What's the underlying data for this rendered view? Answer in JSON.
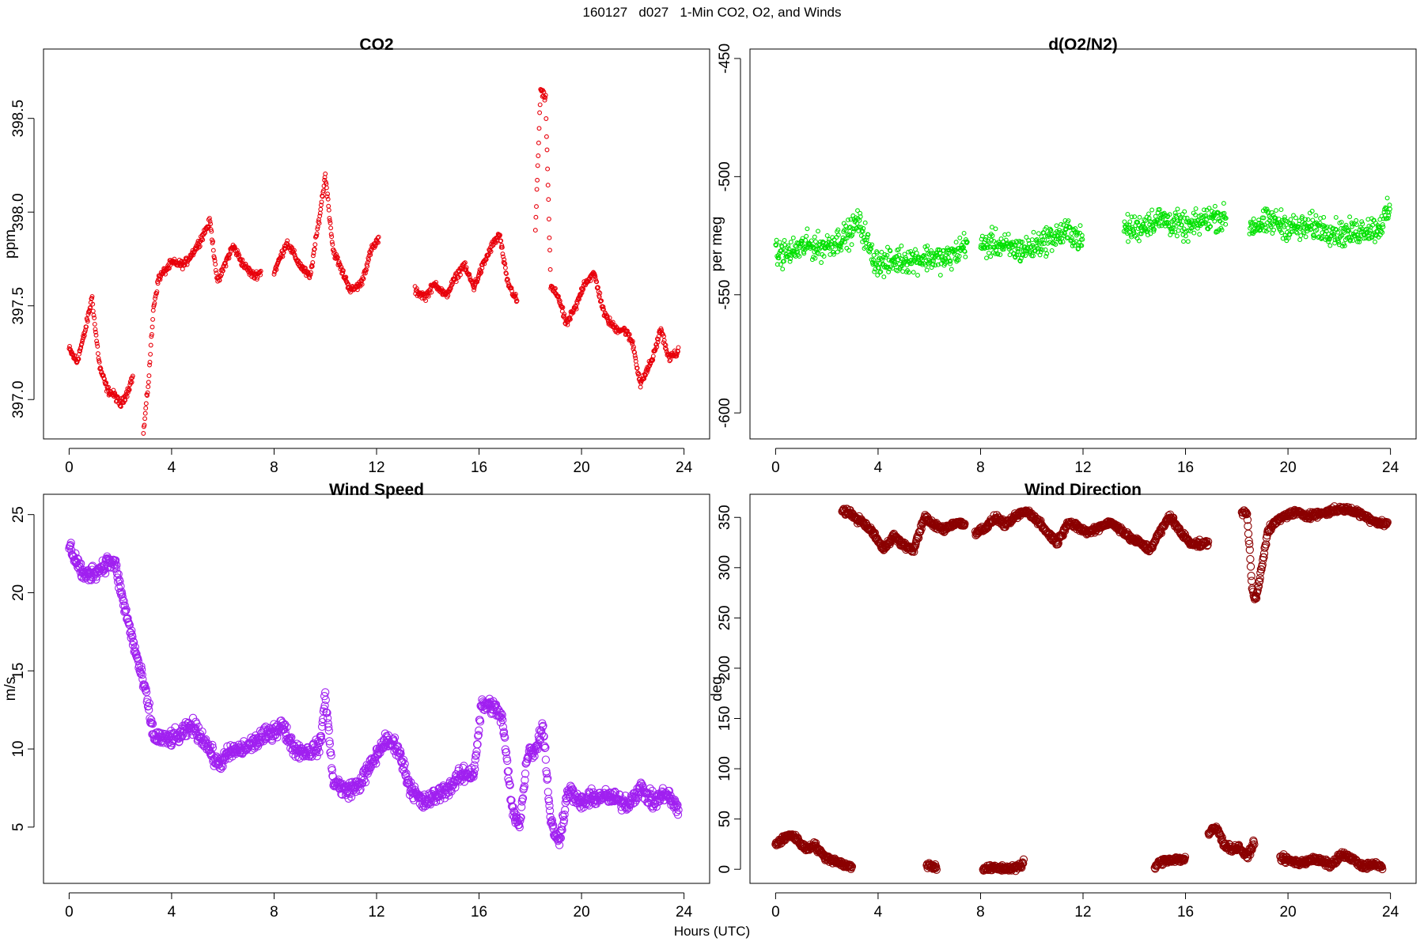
{
  "main_title": "160127   d027   1-Min CO2, O2, and Winds",
  "x_axis_label": "Hours (UTC)",
  "chart_data": [
    {
      "type": "scatter",
      "title": "CO2",
      "xlabel": "",
      "ylabel": "ppm",
      "color": "#e8000b",
      "marker_size": "small",
      "xlim": [
        -1,
        25
      ],
      "ylim": [
        396.79,
        398.87
      ],
      "xticks": [
        0,
        4,
        8,
        12,
        16,
        20,
        24
      ],
      "xtick_labels": [
        "0",
        "4",
        "8",
        "12",
        "16",
        "20",
        "24"
      ],
      "yticks": [
        397.0,
        397.5,
        398.0,
        398.5
      ],
      "ytick_labels": [
        "397.0",
        "397.5",
        "398.0",
        "398.5"
      ],
      "segments": [
        {
          "x": [
            0.0,
            0.3,
            0.6,
            0.9,
            1.0,
            1.2,
            1.5,
            1.8,
            2.0,
            2.3,
            2.5
          ],
          "y": [
            397.27,
            397.2,
            397.35,
            397.55,
            397.4,
            397.17,
            397.05,
            397.02,
            396.97,
            397.05,
            397.13
          ]
        },
        {
          "x": [
            2.9,
            3.1,
            3.3,
            3.5,
            3.7,
            4.0,
            4.5,
            5.0,
            5.5,
            5.8,
            6.1,
            6.4,
            6.8,
            7.2,
            7.5
          ],
          "y": [
            396.82,
            397.1,
            397.5,
            397.65,
            397.68,
            397.73,
            397.72,
            397.82,
            397.95,
            397.62,
            397.73,
            397.82,
            397.72,
            397.66,
            397.68
          ]
        },
        {
          "x": [
            8.0,
            8.5,
            9.0,
            9.4,
            9.8,
            10.0,
            10.3,
            10.7,
            11.0,
            11.4,
            11.8,
            12.1
          ],
          "y": [
            397.68,
            397.84,
            397.72,
            397.65,
            398.0,
            398.2,
            397.8,
            397.67,
            397.58,
            397.62,
            397.8,
            397.86
          ]
        },
        {
          "x": [
            13.5,
            13.9,
            14.3,
            14.7,
            15.0,
            15.4,
            15.8,
            16.1,
            16.5,
            16.8,
            17.1,
            17.5
          ],
          "y": [
            397.58,
            397.55,
            397.62,
            397.55,
            397.63,
            397.72,
            397.6,
            397.7,
            397.82,
            397.88,
            397.63,
            397.52
          ]
        },
        {
          "x": [
            18.2,
            18.4,
            18.6,
            18.8,
            19.1,
            19.4,
            19.8,
            20.1,
            20.5,
            20.9,
            21.3,
            21.7,
            22.0,
            22.3,
            22.8,
            23.1,
            23.4,
            23.8
          ],
          "y": [
            397.9,
            398.65,
            398.6,
            397.6,
            397.55,
            397.4,
            397.5,
            397.62,
            397.67,
            397.45,
            397.38,
            397.37,
            397.3,
            397.08,
            397.23,
            397.38,
            397.22,
            397.26
          ]
        }
      ]
    },
    {
      "type": "scatter",
      "title": "d(O2/N2)",
      "xlabel": "",
      "ylabel": "per meg",
      "color": "#00e000",
      "marker_size": "small",
      "xlim": [
        -1,
        25
      ],
      "ylim": [
        -611,
        -446
      ],
      "xticks": [
        0,
        4,
        8,
        12,
        16,
        20,
        24
      ],
      "xtick_labels": [
        "0",
        "4",
        "8",
        "12",
        "16",
        "20",
        "24"
      ],
      "yticks": [
        -600,
        -550,
        -500,
        -450
      ],
      "ytick_labels": [
        "-600",
        "-550",
        "-500",
        "-450"
      ],
      "segments": [
        {
          "x": [
            0.0,
            0.6,
            1.2,
            1.8,
            2.4,
            2.9,
            3.2,
            3.5,
            3.8,
            4.3,
            4.8,
            5.4,
            6.0,
            6.6,
            7.1,
            7.5
          ],
          "y": [
            -533,
            -532,
            -529,
            -530,
            -527,
            -524,
            -519,
            -525,
            -535,
            -537,
            -535,
            -535,
            -534,
            -535,
            -532,
            -527
          ]
        },
        {
          "x": [
            8.0,
            8.5,
            9.0,
            9.5,
            10.0,
            10.5,
            11.0,
            11.5,
            12.0
          ],
          "y": [
            -530,
            -528,
            -530,
            -531,
            -530,
            -527,
            -525,
            -523,
            -528
          ]
        },
        {
          "x": [
            13.6,
            14.1,
            14.6,
            15.1,
            15.6,
            16.1,
            16.6,
            17.1,
            17.6
          ],
          "y": [
            -522,
            -522,
            -519,
            -518,
            -520,
            -522,
            -519,
            -517,
            -518
          ]
        },
        {
          "x": [
            18.5,
            19.0,
            19.5,
            20.0,
            20.5,
            21.0,
            21.5,
            22.0,
            22.5,
            23.0,
            23.5,
            24.0
          ],
          "y": [
            -521,
            -520,
            -519,
            -521,
            -522,
            -521,
            -522,
            -524,
            -524,
            -522,
            -522,
            -514
          ]
        }
      ]
    },
    {
      "type": "scatter",
      "title": "Wind Speed",
      "xlabel": "",
      "ylabel": "m/s",
      "color": "#a020f0",
      "marker_size": "large",
      "xlim": [
        -1,
        25
      ],
      "ylim": [
        1.4,
        26.3
      ],
      "xticks": [
        0,
        4,
        8,
        12,
        16,
        20,
        24
      ],
      "xtick_labels": [
        "0",
        "4",
        "8",
        "12",
        "16",
        "20",
        "24"
      ],
      "yticks": [
        5,
        10,
        15,
        20,
        25
      ],
      "ytick_labels": [
        "5",
        "10",
        "15",
        "20",
        "25"
      ],
      "segments": [
        {
          "x": [
            0.0,
            0.3,
            0.6,
            0.9,
            1.2,
            1.5,
            1.8,
            2.1,
            2.4,
            2.7,
            3.0,
            3.3,
            3.8,
            4.3,
            4.8,
            5.3,
            5.8,
            6.3,
            6.8,
            7.3,
            7.8,
            8.3,
            8.8,
            9.3,
            9.8,
            10.0,
            10.3,
            10.8,
            11.3,
            11.8,
            12.3,
            12.8,
            13.3,
            13.8,
            14.3,
            14.8,
            15.3,
            15.8,
            16.1,
            16.5,
            16.9,
            17.3,
            17.6,
            17.9,
            18.2,
            18.5,
            18.8,
            19.1,
            19.5,
            19.9,
            20.3,
            20.8,
            21.3,
            21.8,
            22.3,
            22.8,
            23.3,
            23.8
          ],
          "y": [
            23.0,
            22.0,
            21.0,
            21.3,
            21.5,
            22.0,
            21.8,
            19.5,
            17.5,
            15.5,
            13.5,
            10.8,
            10.6,
            10.8,
            11.5,
            10.5,
            9.0,
            9.8,
            10.0,
            10.5,
            11.0,
            11.5,
            10.0,
            9.8,
            10.2,
            13.5,
            8.0,
            7.3,
            7.7,
            9.0,
            10.5,
            10.2,
            7.6,
            6.5,
            7.0,
            7.5,
            8.3,
            8.5,
            12.8,
            12.8,
            12.0,
            6.0,
            5.3,
            9.8,
            10.0,
            11.5,
            5.3,
            4.0,
            7.5,
            6.5,
            6.8,
            7.0,
            6.8,
            6.5,
            7.5,
            6.6,
            7.2,
            6.0
          ]
        }
      ]
    },
    {
      "type": "scatter",
      "title": "Wind Direction",
      "xlabel": "",
      "ylabel": "deg",
      "color": "#8b0000",
      "marker_size": "large",
      "xlim": [
        -1,
        25
      ],
      "ylim": [
        -14,
        373
      ],
      "xticks": [
        0,
        4,
        8,
        12,
        16,
        20,
        24
      ],
      "xtick_labels": [
        "0",
        "4",
        "8",
        "12",
        "16",
        "20",
        "24"
      ],
      "yticks": [
        0,
        50,
        100,
        150,
        200,
        250,
        300,
        350
      ],
      "ytick_labels": [
        "0",
        "50",
        "100",
        "150",
        "200",
        "250",
        "300",
        "350"
      ],
      "segments": [
        {
          "x": [
            0.0,
            0.3,
            0.6,
            0.9,
            1.2,
            1.5,
            1.8,
            2.1,
            2.4,
            2.7,
            3.0
          ],
          "y": [
            25,
            30,
            35,
            28,
            20,
            25,
            15,
            10,
            8,
            4,
            2
          ]
        },
        {
          "x": [
            5.9,
            6.1,
            6.3
          ],
          "y": [
            5,
            3,
            2
          ]
        },
        {
          "x": [
            8.1,
            9.1,
            9.6,
            9.7
          ],
          "y": [
            1,
            1,
            3,
            8
          ]
        },
        {
          "x": [
            14.8,
            15.1,
            15.4,
            15.7,
            16.0
          ],
          "y": [
            3,
            8,
            10,
            10,
            10
          ]
        },
        {
          "x": [
            16.9,
            17.2,
            17.5,
            17.8,
            18.1,
            18.4,
            18.7
          ],
          "y": [
            35,
            42,
            25,
            20,
            22,
            12,
            28
          ]
        },
        {
          "x": [
            19.7,
            20.1,
            20.5,
            20.9,
            21.3,
            21.7,
            22.1,
            22.5,
            22.9,
            23.3,
            23.7
          ],
          "y": [
            12,
            8,
            6,
            10,
            8,
            4,
            15,
            10,
            3,
            5,
            2
          ]
        },
        {
          "x": [
            2.6,
            3.0,
            3.4,
            3.8,
            4.2,
            4.6,
            5.0,
            5.4,
            5.8,
            6.2,
            6.6,
            7.0,
            7.4
          ],
          "y": [
            358,
            352,
            345,
            335,
            318,
            332,
            322,
            318,
            350,
            342,
            338,
            345,
            343
          ]
        },
        {
          "x": [
            7.8,
            8.2,
            8.6,
            9.0,
            9.4,
            9.8,
            10.2,
            10.6,
            11.0,
            11.4,
            11.8,
            12.2,
            12.6,
            13.0,
            13.4,
            13.8,
            14.2,
            14.6,
            15.0,
            15.4,
            15.8,
            16.2,
            16.6,
            16.9
          ],
          "y": [
            335,
            340,
            350,
            342,
            352,
            356,
            348,
            335,
            325,
            345,
            340,
            335,
            340,
            345,
            340,
            330,
            325,
            318,
            335,
            352,
            335,
            325,
            323,
            325
          ]
        },
        {
          "x": [
            18.2,
            18.4,
            18.6,
            18.7,
            18.8,
            19.0,
            19.2,
            19.5,
            19.9,
            20.3,
            20.7,
            21.1,
            21.5,
            21.9,
            22.3,
            22.7,
            23.1,
            23.5,
            23.9
          ],
          "y": [
            355,
            355,
            280,
            268,
            275,
            305,
            335,
            345,
            352,
            355,
            352,
            353,
            355,
            358,
            358,
            355,
            350,
            345,
            343
          ]
        }
      ]
    }
  ]
}
